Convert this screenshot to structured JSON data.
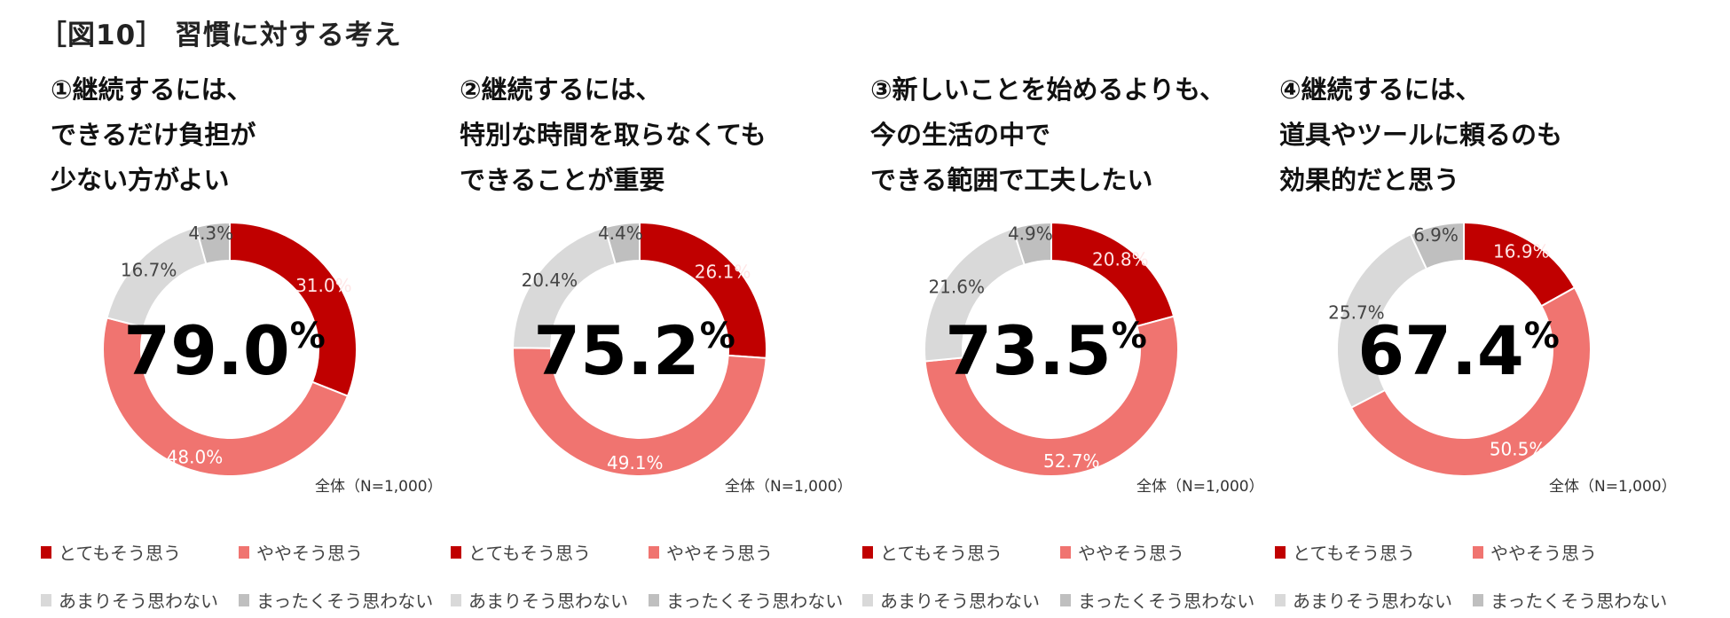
{
  "title": "［図10］ 習慣に対する考え",
  "colors": {
    "very": "#C00000",
    "somewhat": "#F07470",
    "not_much": "#D9D9D9",
    "not_at_all": "#BFBFBF"
  },
  "chart_data": [
    {
      "type": "pie",
      "donut": true,
      "title_lines": [
        "①継続するには、",
        "できるだけ負担が",
        "少ない方がよい"
      ],
      "center_value": "79.0",
      "center_unit": "%",
      "note": "全体（N=1,000）",
      "categories": [
        "とてもそう思う",
        "ややそう思う",
        "あまりそう思わない",
        "まったくそう思わない"
      ],
      "values": [
        31.0,
        48.0,
        16.7,
        4.3
      ],
      "labels": [
        "31.0%",
        "48.0%",
        "16.7%",
        "4.3%"
      ]
    },
    {
      "type": "pie",
      "donut": true,
      "title_lines": [
        "②継続するには、",
        "特別な時間を取らなくても",
        "できることが重要"
      ],
      "center_value": "75.2",
      "center_unit": "%",
      "note": "全体（N=1,000）",
      "categories": [
        "とてもそう思う",
        "ややそう思う",
        "あまりそう思わない",
        "まったくそう思わない"
      ],
      "values": [
        26.1,
        49.1,
        20.4,
        4.4
      ],
      "labels": [
        "26.1%",
        "49.1%",
        "20.4%",
        "4.4%"
      ]
    },
    {
      "type": "pie",
      "donut": true,
      "title_lines": [
        "③新しいことを始めるよりも、",
        "今の生活の中で",
        "できる範囲で工夫したい"
      ],
      "center_value": "73.5",
      "center_unit": "%",
      "note": "全体（N=1,000）",
      "categories": [
        "とてもそう思う",
        "ややそう思う",
        "あまりそう思わない",
        "まったくそう思わない"
      ],
      "values": [
        20.8,
        52.7,
        21.6,
        4.9
      ],
      "labels": [
        "20.8%",
        "52.7%",
        "21.6%",
        "4.9%"
      ]
    },
    {
      "type": "pie",
      "donut": true,
      "title_lines": [
        "④継続するには、",
        "道具やツールに頼るのも",
        "効果的だと思う"
      ],
      "center_value": "67.4",
      "center_unit": "%",
      "note": "全体（N=1,000）",
      "categories": [
        "とてもそう思う",
        "ややそう思う",
        "あまりそう思わない",
        "まったくそう思わない"
      ],
      "values": [
        16.9,
        50.5,
        25.7,
        6.9
      ],
      "labels": [
        "16.9%",
        "50.5%",
        "25.7%",
        "6.9%"
      ]
    }
  ],
  "legend": [
    "とてもそう思う",
    "ややそう思う",
    "あまりそう思わない",
    "まったくそう思わない"
  ]
}
